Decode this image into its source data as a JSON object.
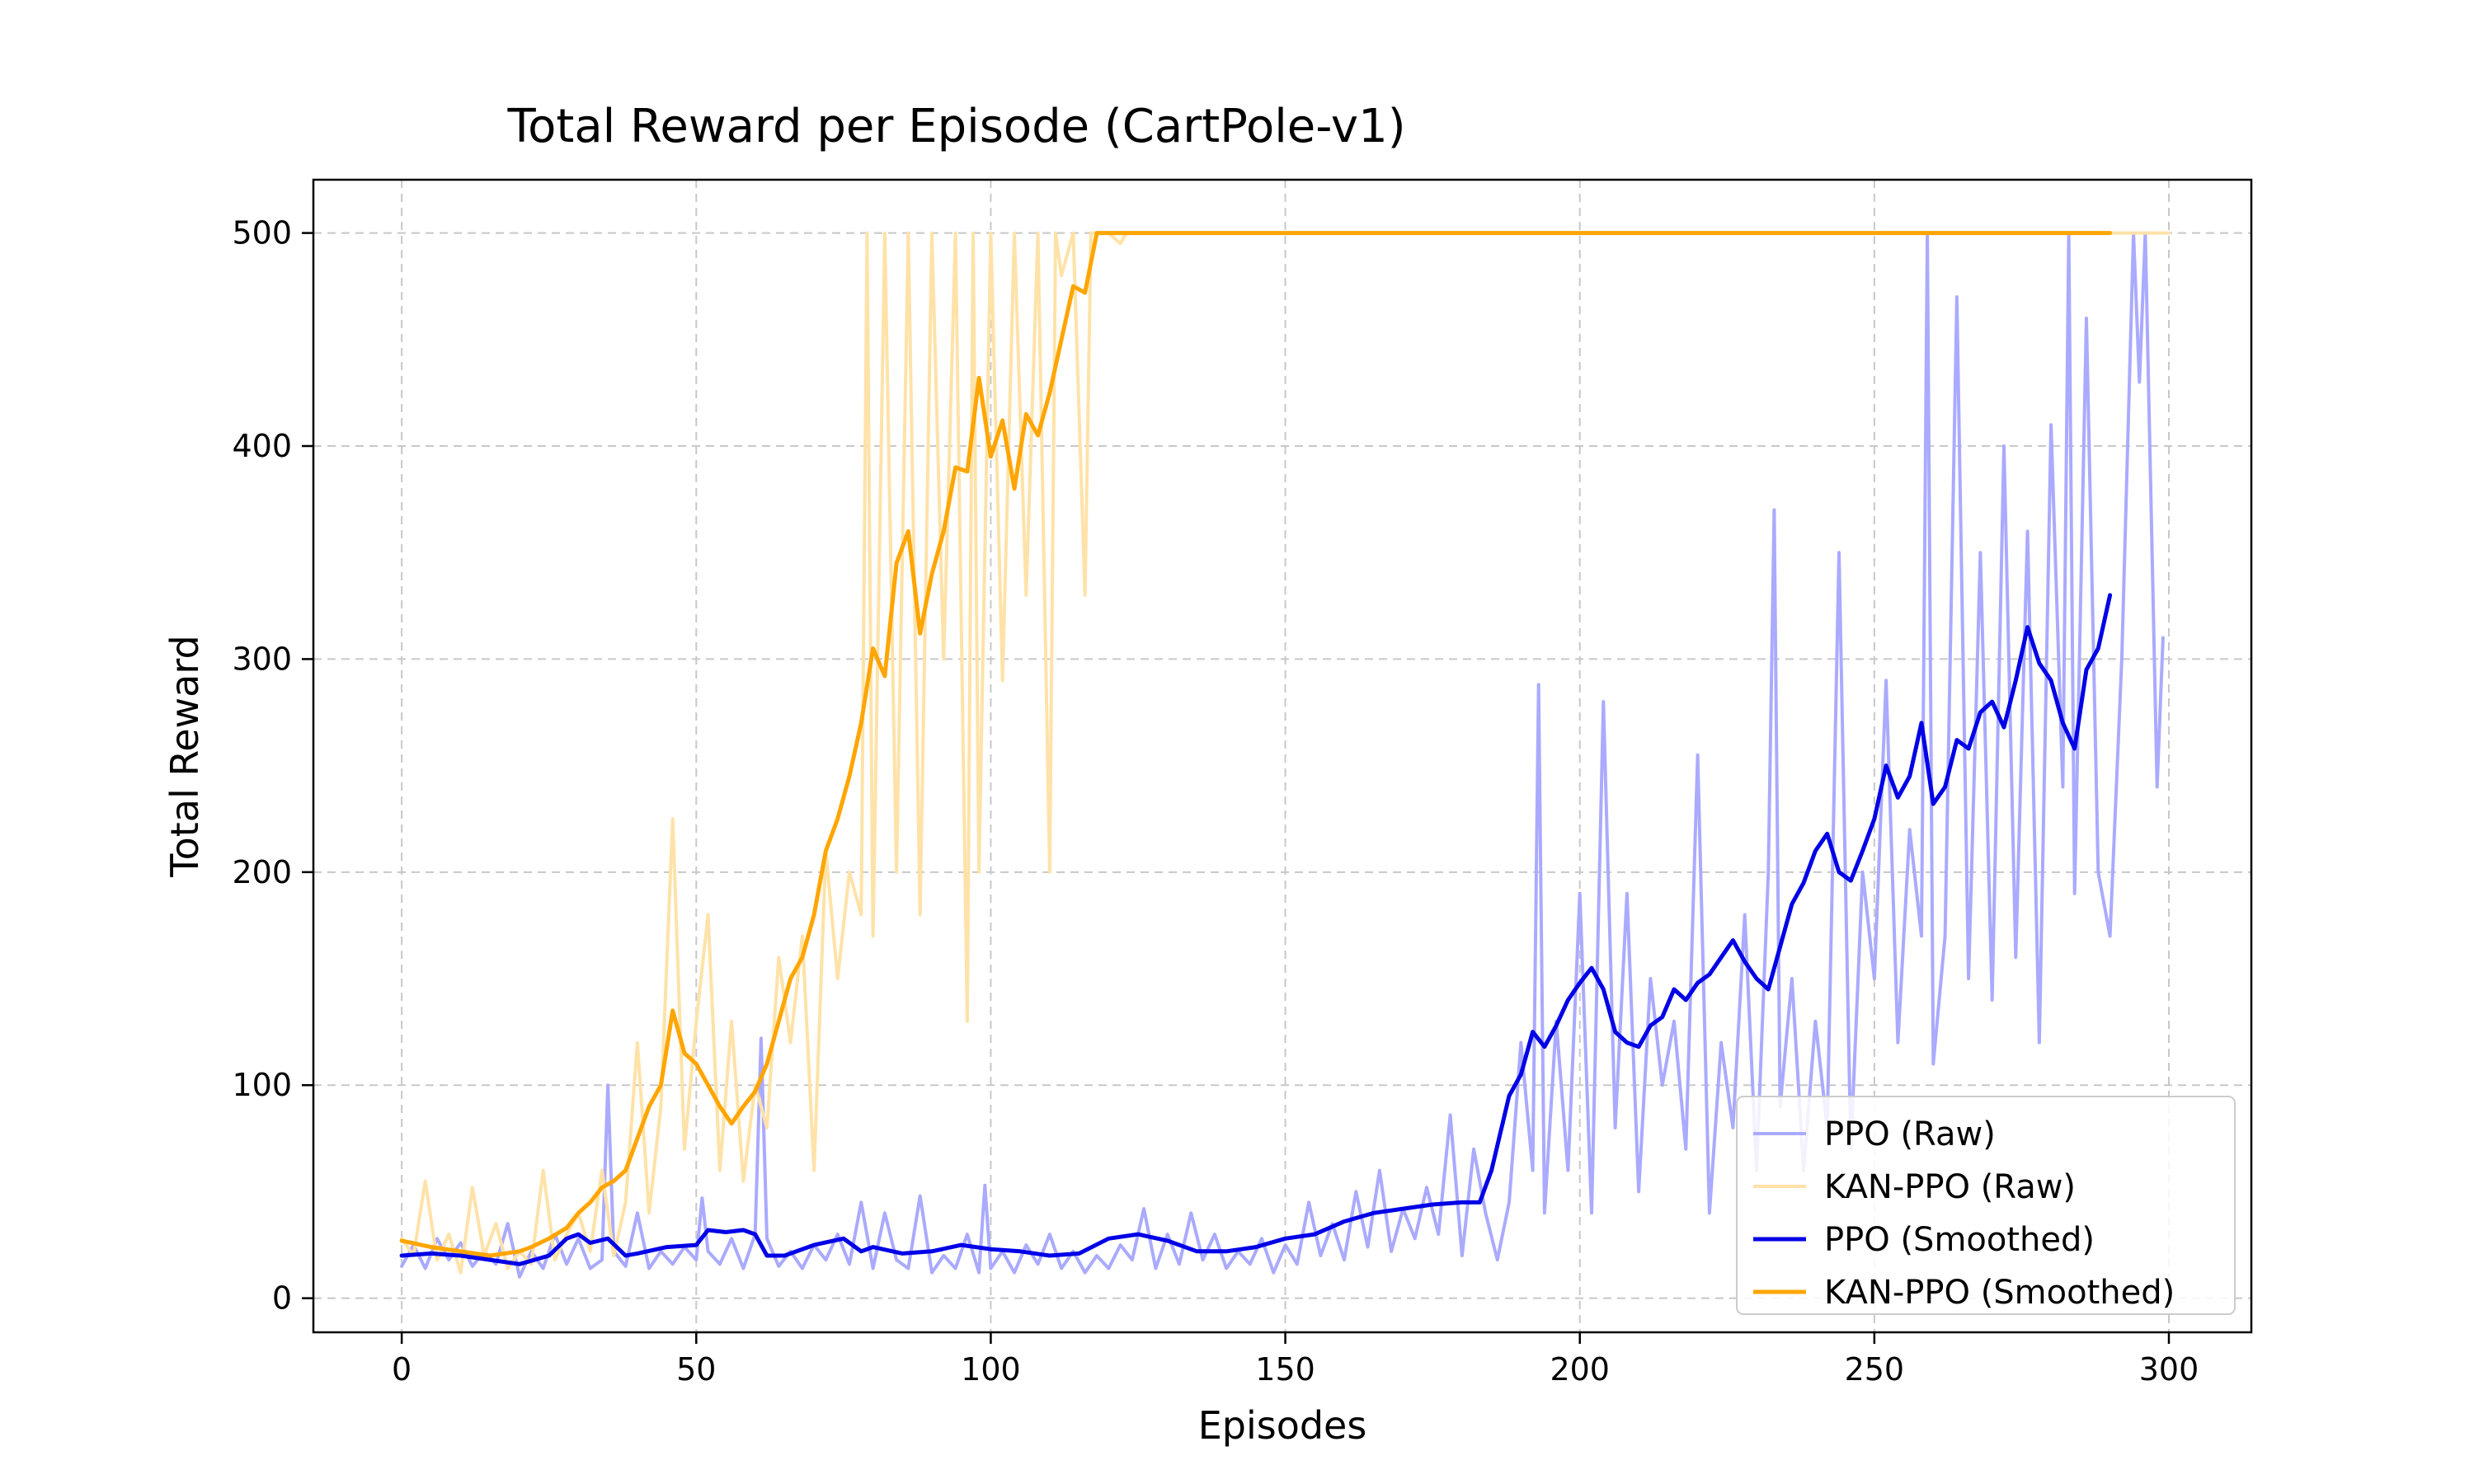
{
  "chart_data": {
    "type": "line",
    "title": "Total Reward per Episode (CartPole-v1)",
    "xlabel": "Episodes",
    "ylabel": "Total Reward",
    "xlim": [
      -15,
      314
    ],
    "ylim": [
      -16,
      525
    ],
    "xticks": [
      0,
      50,
      100,
      150,
      200,
      250,
      300
    ],
    "yticks": [
      0,
      100,
      200,
      300,
      400,
      500
    ],
    "grid": true,
    "legend_position": "lower-right",
    "series": [
      {
        "name": "PPO (Raw)",
        "color": "#aaaaff",
        "x": [
          0,
          2,
          4,
          6,
          8,
          10,
          12,
          14,
          16,
          18,
          20,
          22,
          24,
          26,
          28,
          30,
          32,
          34,
          35,
          36,
          38,
          40,
          42,
          44,
          46,
          48,
          50,
          51,
          52,
          54,
          56,
          58,
          60,
          61,
          62,
          64,
          66,
          68,
          70,
          72,
          74,
          76,
          78,
          80,
          82,
          84,
          86,
          88,
          90,
          92,
          94,
          96,
          98,
          99,
          100,
          102,
          104,
          106,
          108,
          110,
          112,
          114,
          116,
          118,
          120,
          122,
          124,
          126,
          128,
          130,
          132,
          134,
          136,
          138,
          140,
          142,
          144,
          146,
          148,
          150,
          152,
          154,
          156,
          158,
          160,
          162,
          164,
          166,
          168,
          170,
          172,
          174,
          176,
          178,
          180,
          182,
          184,
          186,
          188,
          190,
          192,
          193,
          194,
          196,
          198,
          200,
          202,
          204,
          206,
          208,
          210,
          212,
          214,
          216,
          218,
          220,
          222,
          224,
          226,
          228,
          230,
          232,
          233,
          234,
          236,
          238,
          240,
          242,
          244,
          246,
          248,
          250,
          252,
          254,
          256,
          258,
          259,
          260,
          262,
          264,
          266,
          268,
          270,
          272,
          274,
          276,
          278,
          280,
          282,
          283,
          284,
          286,
          288,
          290,
          292,
          294,
          295,
          296,
          298,
          299
        ],
        "values": [
          15,
          25,
          14,
          28,
          18,
          26,
          15,
          22,
          16,
          35,
          10,
          22,
          14,
          30,
          16,
          28,
          14,
          18,
          100,
          22,
          15,
          40,
          14,
          22,
          16,
          24,
          18,
          47,
          22,
          16,
          28,
          14,
          30,
          122,
          28,
          15,
          22,
          14,
          25,
          18,
          30,
          16,
          45,
          14,
          40,
          18,
          14,
          48,
          12,
          20,
          14,
          30,
          12,
          53,
          14,
          22,
          12,
          25,
          16,
          30,
          14,
          22,
          12,
          20,
          14,
          25,
          18,
          42,
          14,
          30,
          16,
          40,
          18,
          30,
          14,
          22,
          16,
          28,
          12,
          25,
          16,
          45,
          20,
          35,
          18,
          50,
          24,
          60,
          22,
          42,
          28,
          52,
          30,
          86,
          20,
          70,
          40,
          18,
          45,
          120,
          60,
          288,
          40,
          130,
          60,
          190,
          40,
          280,
          80,
          190,
          50,
          150,
          100,
          130,
          70,
          255,
          40,
          120,
          80,
          180,
          60,
          200,
          370,
          90,
          150,
          60,
          130,
          80,
          350,
          70,
          200,
          150,
          290,
          120,
          220,
          170,
          500,
          110,
          170,
          470,
          150,
          350,
          140,
          400,
          160,
          360,
          120,
          410,
          240,
          500,
          190,
          460,
          200,
          170,
          300,
          500,
          430,
          500,
          240,
          310
        ]
      },
      {
        "name": "KAN-PPO (Raw)",
        "color": "#ffe2a8",
        "x": [
          0,
          2,
          4,
          6,
          8,
          10,
          12,
          14,
          16,
          18,
          20,
          22,
          24,
          26,
          28,
          30,
          32,
          34,
          36,
          38,
          40,
          42,
          44,
          46,
          48,
          50,
          52,
          54,
          56,
          58,
          60,
          62,
          64,
          66,
          68,
          70,
          72,
          74,
          76,
          78,
          79,
          80,
          82,
          84,
          86,
          88,
          90,
          92,
          94,
          96,
          97,
          98,
          100,
          102,
          104,
          106,
          108,
          110,
          111,
          112,
          114,
          116,
          117,
          118,
          120,
          122,
          123,
          124,
          126,
          300
        ],
        "values": [
          28,
          20,
          55,
          18,
          30,
          12,
          52,
          20,
          35,
          14,
          22,
          16,
          60,
          18,
          30,
          40,
          22,
          60,
          20,
          45,
          120,
          40,
          90,
          225,
          70,
          130,
          180,
          60,
          130,
          55,
          100,
          80,
          160,
          120,
          170,
          60,
          210,
          150,
          200,
          180,
          500,
          170,
          500,
          200,
          500,
          180,
          500,
          300,
          500,
          130,
          500,
          200,
          500,
          290,
          500,
          330,
          500,
          200,
          500,
          480,
          500,
          330,
          500,
          500,
          500,
          495,
          500,
          500,
          500,
          500
        ]
      },
      {
        "name": "PPO (Smoothed)",
        "color": "#0000e6",
        "x": [
          0,
          5,
          10,
          15,
          20,
          25,
          28,
          30,
          32,
          35,
          38,
          40,
          45,
          50,
          52,
          55,
          58,
          60,
          62,
          65,
          70,
          75,
          78,
          80,
          85,
          90,
          95,
          100,
          105,
          110,
          115,
          120,
          125,
          130,
          135,
          140,
          145,
          150,
          155,
          160,
          165,
          170,
          175,
          180,
          183,
          185,
          188,
          190,
          192,
          194,
          196,
          198,
          200,
          202,
          204,
          206,
          208,
          210,
          212,
          214,
          216,
          218,
          220,
          222,
          224,
          226,
          228,
          230,
          232,
          234,
          236,
          238,
          240,
          242,
          244,
          246,
          248,
          250,
          252,
          254,
          256,
          258,
          260,
          262,
          264,
          266,
          268,
          270,
          272,
          274,
          276,
          278,
          280,
          282,
          284,
          286,
          288,
          290
        ],
        "values": [
          20,
          21,
          20,
          18,
          16,
          20,
          28,
          30,
          26,
          28,
          20,
          21,
          24,
          25,
          32,
          31,
          32,
          30,
          20,
          20,
          25,
          28,
          22,
          24,
          21,
          22,
          25,
          23,
          22,
          20,
          21,
          28,
          30,
          27,
          22,
          22,
          24,
          28,
          30,
          36,
          40,
          42,
          44,
          45,
          45,
          60,
          95,
          105,
          125,
          118,
          128,
          140,
          148,
          155,
          145,
          125,
          120,
          118,
          128,
          132,
          145,
          140,
          148,
          152,
          160,
          168,
          158,
          150,
          145,
          165,
          185,
          195,
          210,
          218,
          200,
          196,
          210,
          225,
          250,
          235,
          245,
          270,
          232,
          240,
          262,
          258,
          275,
          280,
          268,
          290,
          315,
          298,
          290,
          270,
          258,
          295,
          305,
          330
        ]
      },
      {
        "name": "KAN-PPO (Smoothed)",
        "color": "#ffa500",
        "x": [
          0,
          5,
          10,
          15,
          20,
          22,
          25,
          28,
          30,
          32,
          34,
          36,
          38,
          40,
          42,
          44,
          46,
          48,
          50,
          52,
          54,
          56,
          58,
          60,
          62,
          64,
          66,
          68,
          70,
          72,
          74,
          76,
          78,
          80,
          82,
          84,
          86,
          88,
          90,
          92,
          94,
          96,
          98,
          100,
          102,
          104,
          106,
          108,
          110,
          112,
          114,
          116,
          118,
          120,
          125,
          150,
          200,
          250,
          290
        ],
        "values": [
          27,
          24,
          22,
          20,
          22,
          24,
          28,
          33,
          40,
          45,
          52,
          55,
          60,
          75,
          90,
          100,
          135,
          115,
          110,
          100,
          90,
          82,
          90,
          97,
          110,
          130,
          150,
          160,
          180,
          210,
          225,
          245,
          270,
          305,
          292,
          345,
          360,
          312,
          340,
          360,
          390,
          388,
          432,
          395,
          412,
          380,
          415,
          405,
          425,
          450,
          475,
          472,
          500,
          500,
          500,
          500,
          500,
          500,
          500
        ]
      }
    ]
  }
}
